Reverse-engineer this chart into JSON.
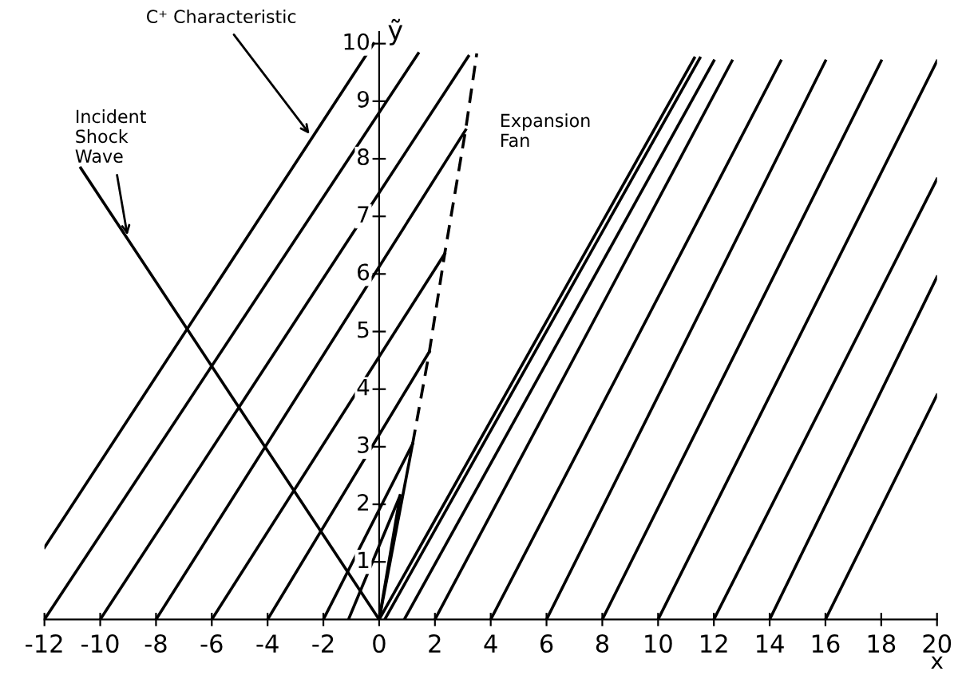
{
  "chart_data": {
    "type": "line",
    "xlabel": "x",
    "ylabel": "ỹ",
    "xlim": [
      -12,
      20
    ],
    "ylim": [
      0,
      10.2
    ],
    "xticks": [
      -12,
      -10,
      -8,
      -6,
      -4,
      -2,
      0,
      2,
      4,
      6,
      8,
      10,
      12,
      14,
      16,
      18,
      20
    ],
    "yticks": [
      1,
      2,
      3,
      4,
      5,
      6,
      7,
      8,
      9,
      10
    ],
    "grid": false,
    "legend": false,
    "marker": "none",
    "line_style": "solid",
    "annotations": [
      {
        "text": "C⁺ Characteristic",
        "x": -2.4,
        "y": 8.37
      },
      {
        "text": "Incident\nShock\nWave",
        "x": -9.0,
        "y": 6.6
      },
      "Expansion\nFan"
    ],
    "series": [
      {
        "color": "#000000",
        "x": [
          -12,
          -0.2
        ],
        "values": [
          1.25,
          10.0
        ]
      },
      {
        "color": "#000000",
        "x": [
          -12,
          1.4
        ],
        "values": [
          0,
          9.83
        ]
      },
      {
        "color": "#000000",
        "x": [
          -10,
          3.2
        ],
        "values": [
          0,
          9.78
        ]
      },
      {
        "color": "#000000",
        "x": [
          -8,
          3.1
        ],
        "values": [
          0,
          8.5
        ]
      },
      {
        "color": "#000000",
        "x": [
          -6,
          2.35
        ],
        "values": [
          0,
          6.35
        ]
      },
      {
        "color": "#000000",
        "x": [
          -4,
          1.8
        ],
        "values": [
          0,
          4.65
        ]
      },
      {
        "color": "#000000",
        "x": [
          -2,
          1.2
        ],
        "values": [
          0,
          3.05
        ]
      },
      {
        "color": "#000000",
        "x": [
          -1.1,
          0.75
        ],
        "values": [
          0,
          2.15
        ]
      },
      {
        "color": "#000000",
        "x": [
          0,
          0.75
        ],
        "values": [
          0,
          2.15
        ]
      },
      {
        "color": "#000000",
        "x": [
          0,
          1.2
        ],
        "values": [
          0,
          3.05
        ]
      },
      {
        "color": "#000000",
        "x": [
          1.2,
          1.8,
          2.35,
          3.1,
          3.5
        ],
        "values": [
          3.05,
          4.65,
          6.35,
          8.5,
          9.83
        ],
        "line_style": "dashed"
      },
      {
        "color": "#000000",
        "x": [
          -10.7,
          0
        ],
        "values": [
          7.84,
          0
        ]
      },
      {
        "color": "#000000",
        "x": [
          0,
          11.3
        ],
        "values": [
          0,
          9.75
        ]
      },
      {
        "color": "#000000",
        "x": [
          0.2,
          11.5
        ],
        "values": [
          0,
          9.75
        ]
      },
      {
        "color": "#000000",
        "x": [
          0.9,
          12.0
        ],
        "values": [
          0,
          9.7
        ]
      },
      {
        "color": "#000000",
        "x": [
          2,
          12.65
        ],
        "values": [
          0,
          9.7
        ]
      },
      {
        "color": "#000000",
        "x": [
          4,
          14.4
        ],
        "values": [
          0,
          9.7
        ]
      },
      {
        "color": "#000000",
        "x": [
          6,
          16.0
        ],
        "values": [
          0,
          9.7
        ]
      },
      {
        "color": "#000000",
        "x": [
          8,
          18.0
        ],
        "values": [
          0,
          9.7
        ]
      },
      {
        "color": "#000000",
        "x": [
          10,
          20
        ],
        "values": [
          0,
          9.7
        ]
      },
      {
        "color": "#000000",
        "x": [
          12,
          20
        ],
        "values": [
          0,
          7.65
        ]
      },
      {
        "color": "#000000",
        "x": [
          14,
          20
        ],
        "values": [
          0,
          5.95
        ]
      },
      {
        "color": "#000000",
        "x": [
          16,
          20
        ],
        "values": [
          0,
          3.9
        ]
      }
    ]
  }
}
